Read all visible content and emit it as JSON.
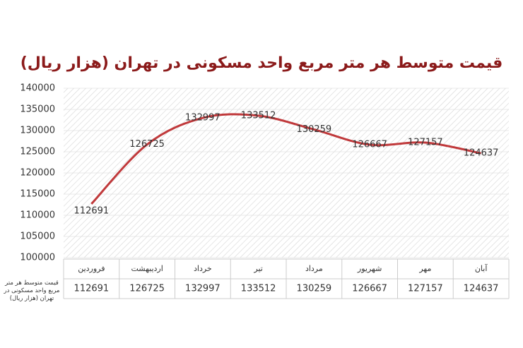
{
  "chart_data": {
    "type": "line",
    "title": "قیمت متوسط هر متر مربع واحد مسکونی در تهران (هزار ریال)",
    "categories": [
      "فروردین",
      "اردیبهشت",
      "خرداد",
      "تیر",
      "مرداد",
      "شهریور",
      "مهر",
      "آبان"
    ],
    "series": [
      {
        "name": "قیمت متوسط هر متر مربع واحد مسکونی در تهران (هزار ریال)",
        "color": "#c0393b",
        "values": [
          112691,
          126725,
          132997,
          133512,
          130259,
          126667,
          127157,
          124637
        ]
      }
    ],
    "ylim": [
      100000,
      140000
    ],
    "yticks": [
      100000,
      105000,
      110000,
      115000,
      120000,
      125000,
      130000,
      135000,
      140000
    ],
    "grid": true
  }
}
